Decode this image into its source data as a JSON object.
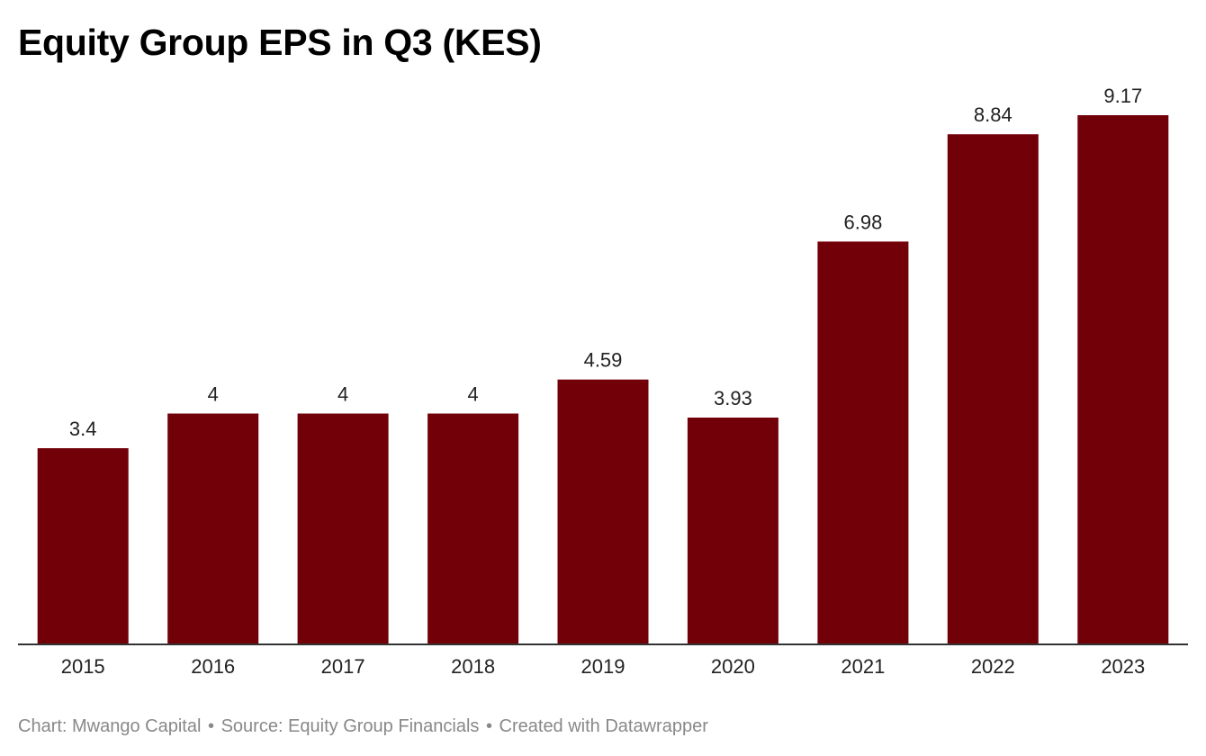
{
  "chart_data": {
    "type": "bar",
    "title": "Equity Group EPS in Q3 (KES)",
    "categories": [
      "2015",
      "2016",
      "2017",
      "2018",
      "2019",
      "2020",
      "2021",
      "2022",
      "2023"
    ],
    "values": [
      3.4,
      4,
      4,
      4,
      4.59,
      3.93,
      6.98,
      8.84,
      9.17
    ],
    "value_labels": [
      "3.4",
      "4",
      "4",
      "4",
      "4.59",
      "3.93",
      "6.98",
      "8.84",
      "9.17"
    ],
    "xlabel": "",
    "ylabel": "",
    "ylim": [
      0,
      9.17
    ],
    "grid": false,
    "legend": "none",
    "bar_color": "#720009",
    "baseline_color": "#333333"
  },
  "footer": {
    "chart_credit": "Chart: Mwango Capital",
    "separator": "•",
    "source": "Source: Equity Group Financials",
    "created_with": "Created with Datawrapper"
  }
}
